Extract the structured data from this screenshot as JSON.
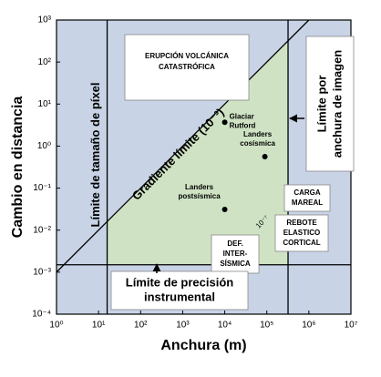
{
  "chart_data": {
    "type": "scatter",
    "x_label": "Anchura (m)",
    "y_label": "Cambio en distancia",
    "log_x": true,
    "log_y": true,
    "xlim": [
      1,
      10000000
    ],
    "ylim": [
      0.0001,
      1000
    ],
    "xticks": [
      {
        "value": 1,
        "label": "10⁰"
      },
      {
        "value": 10,
        "label": "10¹"
      },
      {
        "value": 100,
        "label": "10²"
      },
      {
        "value": 1000,
        "label": "10³"
      },
      {
        "value": 10000,
        "label": "10⁴"
      },
      {
        "value": 100000,
        "label": "10⁵"
      },
      {
        "value": 1000000,
        "label": "10⁶"
      },
      {
        "value": 10000000,
        "label": "10⁷"
      }
    ],
    "yticks": [
      {
        "value": 0.0001,
        "label": "10⁻⁴"
      },
      {
        "value": 0.001,
        "label": "10⁻³"
      },
      {
        "value": 0.01,
        "label": "10⁻²"
      },
      {
        "value": 0.1,
        "label": "10⁻¹"
      },
      {
        "value": 1,
        "label": "10⁰"
      },
      {
        "value": 10,
        "label": "10¹"
      },
      {
        "value": 100,
        "label": "10²"
      },
      {
        "value": 1000,
        "label": "10³"
      }
    ],
    "limits": {
      "pixel_size": 16,
      "image_width": 320000,
      "precision": 0.0015,
      "gradient": 0.001
    },
    "limit_labels": {
      "pixel_size": "Límite de tamaño de píxel",
      "image_width": [
        "Límite por",
        "anchura de imagen"
      ],
      "precision": [
        "Límite de precisión",
        "instrumental"
      ],
      "gradient": "Gradiente límite (10⁻³)",
      "gradient_small": "10⁻⁷"
    },
    "points": [
      {
        "label": [
          "Glaciar",
          "Rutford"
        ],
        "x": 10000,
        "y": 3.7
      },
      {
        "label": [
          "Landers",
          "cosísmica"
        ],
        "x": 90000,
        "y": 0.56
      },
      {
        "label": [
          "Landers",
          "postsísmica"
        ],
        "x": 10000,
        "y": 0.031
      }
    ],
    "regions": [
      [
        "ERUPCIÓN VOLCÁNICA",
        "CATASTRÓFICA"
      ],
      [
        "CARGA",
        "MAREAL"
      ],
      [
        "REBOTE",
        "ELASTICO",
        "CORTICAL"
      ],
      [
        "DEF.",
        "INTER-",
        "SÍSMICA"
      ]
    ],
    "colors": {
      "background": "#c8d3e6",
      "feasible": "#cfe3c4",
      "point": "#000000"
    }
  }
}
